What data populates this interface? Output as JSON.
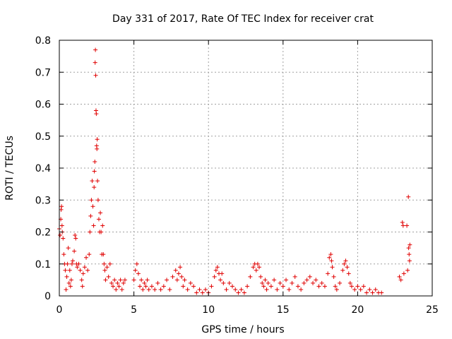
{
  "chart_data": {
    "type": "scatter",
    "title": "Day 331 of 2017, Rate Of TEC Index for receiver crat",
    "xlabel": "GPS time / hours",
    "ylabel": "ROTI / TECUs",
    "xlim": [
      0,
      25
    ],
    "ylim": [
      0,
      0.8
    ],
    "x_ticks": [
      0,
      5,
      10,
      15,
      20,
      25
    ],
    "x_tick_labels": [
      "0",
      "5",
      "10",
      "15",
      "20",
      "25"
    ],
    "y_ticks": [
      0,
      0.1,
      0.2,
      0.3,
      0.4,
      0.5,
      0.6,
      0.7,
      0.8
    ],
    "y_tick_labels": [
      "0",
      "0.1",
      "0.2",
      "0.3",
      "0.4",
      "0.5",
      "0.6",
      "0.7",
      "0.8"
    ],
    "grid": true,
    "marker": "+",
    "color": "#e00000",
    "series": [
      {
        "name": "ROTI",
        "points": [
          [
            0.0,
            0.21
          ],
          [
            0.05,
            0.19
          ],
          [
            0.1,
            0.24
          ],
          [
            0.12,
            0.27
          ],
          [
            0.15,
            0.28
          ],
          [
            0.18,
            0.22
          ],
          [
            0.2,
            0.2
          ],
          [
            0.25,
            0.18
          ],
          [
            0.3,
            0.13
          ],
          [
            0.35,
            0.1
          ],
          [
            0.4,
            0.08
          ],
          [
            0.45,
            0.02
          ],
          [
            0.5,
            0.06
          ],
          [
            0.55,
            0.1
          ],
          [
            0.6,
            0.15
          ],
          [
            0.65,
            0.04
          ],
          [
            0.7,
            0.08
          ],
          [
            0.75,
            0.03
          ],
          [
            0.8,
            0.05
          ],
          [
            0.85,
            0.1
          ],
          [
            0.9,
            0.11
          ],
          [
            1.0,
            0.14
          ],
          [
            1.05,
            0.19
          ],
          [
            1.1,
            0.18
          ],
          [
            1.15,
            0.1
          ],
          [
            1.2,
            0.09
          ],
          [
            1.3,
            0.1
          ],
          [
            1.4,
            0.08
          ],
          [
            1.5,
            0.05
          ],
          [
            1.55,
            0.03
          ],
          [
            1.6,
            0.07
          ],
          [
            1.7,
            0.09
          ],
          [
            1.8,
            0.12
          ],
          [
            1.9,
            0.08
          ],
          [
            2.0,
            0.13
          ],
          [
            2.05,
            0.2
          ],
          [
            2.1,
            0.25
          ],
          [
            2.15,
            0.3
          ],
          [
            2.2,
            0.36
          ],
          [
            2.25,
            0.28
          ],
          [
            2.3,
            0.22
          ],
          [
            2.33,
            0.34
          ],
          [
            2.35,
            0.39
          ],
          [
            2.38,
            0.42
          ],
          [
            2.4,
            0.73
          ],
          [
            2.42,
            0.77
          ],
          [
            2.44,
            0.69
          ],
          [
            2.46,
            0.58
          ],
          [
            2.48,
            0.57
          ],
          [
            2.5,
            0.47
          ],
          [
            2.52,
            0.46
          ],
          [
            2.54,
            0.49
          ],
          [
            2.56,
            0.36
          ],
          [
            2.6,
            0.3
          ],
          [
            2.65,
            0.24
          ],
          [
            2.7,
            0.2
          ],
          [
            2.75,
            0.26
          ],
          [
            2.8,
            0.2
          ],
          [
            2.85,
            0.13
          ],
          [
            2.9,
            0.22
          ],
          [
            2.95,
            0.13
          ],
          [
            3.0,
            0.1
          ],
          [
            3.05,
            0.08
          ],
          [
            3.1,
            0.05
          ],
          [
            3.2,
            0.09
          ],
          [
            3.3,
            0.06
          ],
          [
            3.4,
            0.1
          ],
          [
            3.5,
            0.04
          ],
          [
            3.6,
            0.03
          ],
          [
            3.7,
            0.05
          ],
          [
            3.8,
            0.02
          ],
          [
            3.9,
            0.04
          ],
          [
            4.0,
            0.03
          ],
          [
            4.1,
            0.05
          ],
          [
            4.2,
            0.02
          ],
          [
            4.3,
            0.04
          ],
          [
            4.4,
            0.05
          ],
          [
            5.0,
            0.05
          ],
          [
            5.1,
            0.08
          ],
          [
            5.2,
            0.1
          ],
          [
            5.3,
            0.07
          ],
          [
            5.4,
            0.03
          ],
          [
            5.5,
            0.05
          ],
          [
            5.6,
            0.02
          ],
          [
            5.7,
            0.04
          ],
          [
            5.8,
            0.03
          ],
          [
            5.9,
            0.05
          ],
          [
            6.0,
            0.02
          ],
          [
            6.2,
            0.03
          ],
          [
            6.4,
            0.02
          ],
          [
            6.6,
            0.04
          ],
          [
            6.8,
            0.02
          ],
          [
            7.0,
            0.03
          ],
          [
            7.2,
            0.05
          ],
          [
            7.4,
            0.02
          ],
          [
            7.6,
            0.06
          ],
          [
            7.8,
            0.08
          ],
          [
            7.9,
            0.05
          ],
          [
            8.0,
            0.07
          ],
          [
            8.1,
            0.09
          ],
          [
            8.2,
            0.06
          ],
          [
            8.3,
            0.03
          ],
          [
            8.4,
            0.05
          ],
          [
            8.6,
            0.02
          ],
          [
            8.8,
            0.04
          ],
          [
            9.0,
            0.03
          ],
          [
            9.2,
            0.01
          ],
          [
            9.4,
            0.02
          ],
          [
            9.6,
            0.01
          ],
          [
            9.8,
            0.02
          ],
          [
            10.0,
            0.01
          ],
          [
            10.2,
            0.03
          ],
          [
            10.4,
            0.06
          ],
          [
            10.5,
            0.08
          ],
          [
            10.6,
            0.09
          ],
          [
            10.7,
            0.07
          ],
          [
            10.8,
            0.05
          ],
          [
            10.9,
            0.07
          ],
          [
            11.0,
            0.04
          ],
          [
            11.2,
            0.02
          ],
          [
            11.4,
            0.04
          ],
          [
            11.6,
            0.03
          ],
          [
            11.8,
            0.02
          ],
          [
            12.0,
            0.01
          ],
          [
            12.2,
            0.02
          ],
          [
            12.4,
            0.01
          ],
          [
            12.6,
            0.03
          ],
          [
            12.8,
            0.06
          ],
          [
            13.0,
            0.09
          ],
          [
            13.1,
            0.1
          ],
          [
            13.2,
            0.08
          ],
          [
            13.3,
            0.1
          ],
          [
            13.4,
            0.09
          ],
          [
            13.5,
            0.06
          ],
          [
            13.6,
            0.04
          ],
          [
            13.7,
            0.03
          ],
          [
            13.8,
            0.05
          ],
          [
            13.9,
            0.02
          ],
          [
            14.0,
            0.04
          ],
          [
            14.2,
            0.03
          ],
          [
            14.4,
            0.05
          ],
          [
            14.6,
            0.02
          ],
          [
            14.8,
            0.04
          ],
          [
            15.0,
            0.03
          ],
          [
            15.2,
            0.05
          ],
          [
            15.4,
            0.02
          ],
          [
            15.6,
            0.04
          ],
          [
            15.8,
            0.06
          ],
          [
            16.0,
            0.03
          ],
          [
            16.2,
            0.02
          ],
          [
            16.4,
            0.04
          ],
          [
            16.6,
            0.05
          ],
          [
            16.8,
            0.06
          ],
          [
            17.0,
            0.04
          ],
          [
            17.2,
            0.05
          ],
          [
            17.4,
            0.03
          ],
          [
            17.6,
            0.04
          ],
          [
            17.8,
            0.03
          ],
          [
            18.0,
            0.07
          ],
          [
            18.1,
            0.12
          ],
          [
            18.2,
            0.13
          ],
          [
            18.25,
            0.11
          ],
          [
            18.3,
            0.09
          ],
          [
            18.4,
            0.06
          ],
          [
            18.5,
            0.03
          ],
          [
            18.6,
            0.02
          ],
          [
            18.8,
            0.04
          ],
          [
            19.0,
            0.08
          ],
          [
            19.1,
            0.1
          ],
          [
            19.2,
            0.11
          ],
          [
            19.3,
            0.09
          ],
          [
            19.4,
            0.07
          ],
          [
            19.5,
            0.04
          ],
          [
            19.6,
            0.03
          ],
          [
            19.8,
            0.02
          ],
          [
            20.0,
            0.03
          ],
          [
            20.2,
            0.02
          ],
          [
            20.4,
            0.03
          ],
          [
            20.6,
            0.01
          ],
          [
            20.8,
            0.02
          ],
          [
            21.0,
            0.01
          ],
          [
            21.2,
            0.02
          ],
          [
            21.4,
            0.01
          ],
          [
            21.6,
            0.01
          ],
          [
            22.8,
            0.06
          ],
          [
            22.9,
            0.05
          ],
          [
            23.0,
            0.23
          ],
          [
            23.05,
            0.22
          ],
          [
            23.1,
            0.07
          ],
          [
            23.3,
            0.22
          ],
          [
            23.35,
            0.08
          ],
          [
            23.4,
            0.31
          ],
          [
            23.42,
            0.15
          ],
          [
            23.45,
            0.13
          ],
          [
            23.48,
            0.11
          ],
          [
            23.5,
            0.16
          ]
        ]
      }
    ]
  }
}
